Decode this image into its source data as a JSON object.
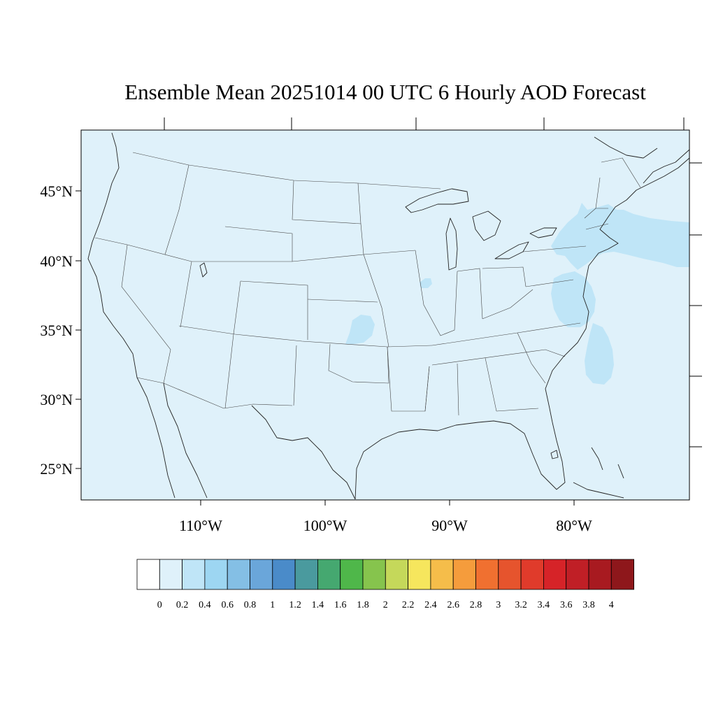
{
  "title": "Ensemble Mean 20251014 00 UTC 6 Hourly AOD Forecast",
  "map": {
    "projection": "Lambert conformal",
    "region": "Contiguous United States",
    "background_aod_bin": "0 to 0.2",
    "background_color": "#dff1fa",
    "latitude_labels": [
      "45°N",
      "40°N",
      "35°N",
      "30°N",
      "25°N"
    ],
    "longitude_labels": [
      "110°W",
      "100°W",
      "90°W",
      "80°W"
    ],
    "features": [
      {
        "area": "Atlantic off New England / Long Island",
        "aod_bin": "0.2 to 0.4"
      },
      {
        "area": "Chesapeake Bay region",
        "aod_bin": "0.2 to 0.4"
      },
      {
        "area": "Offshore North Carolina / South Carolina",
        "aod_bin": "0.2 to 0.4"
      },
      {
        "area": "Northern Oklahoma / Kansas border",
        "aod_bin": "0.2 to 0.4"
      },
      {
        "area": "Southern Illinois",
        "aod_bin": "0.2 to 0.4"
      }
    ]
  },
  "colorbar": {
    "labels": [
      "0",
      "0.2",
      "0.4",
      "0.6",
      "0.8",
      "1",
      "1.2",
      "1.4",
      "1.6",
      "1.8",
      "2",
      "2.2",
      "2.4",
      "2.6",
      "2.8",
      "3",
      "3.2",
      "3.4",
      "3.6",
      "3.8",
      "4"
    ],
    "colors": [
      "#ffffff",
      "#dff1fa",
      "#bfe5f7",
      "#9dd6f2",
      "#84bfe5",
      "#6aa6da",
      "#4a8bc9",
      "#4a9a9e",
      "#45a870",
      "#4fb74a",
      "#86c44d",
      "#c5d85a",
      "#f6e65d",
      "#f5bd4a",
      "#f59c3c",
      "#f07030",
      "#e6542d",
      "#e03b2b",
      "#d62328",
      "#c01f26",
      "#a81a20",
      "#8e171b"
    ]
  }
}
